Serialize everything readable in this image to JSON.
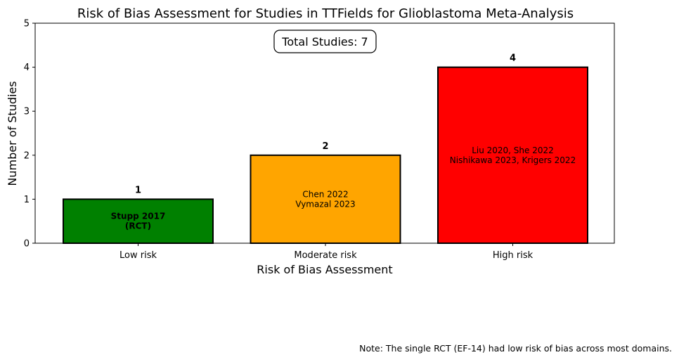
{
  "chart_data": {
    "type": "bar",
    "title": "Risk of Bias Assessment for Studies in TTFields for Glioblastoma Meta-Analysis",
    "xlabel": "Risk of Bias Assessment",
    "ylabel": "Number of Studies",
    "categories": [
      "Low risk",
      "Moderate risk",
      "High risk"
    ],
    "values": [
      1,
      2,
      4
    ],
    "colors": [
      "#008000",
      "#FFA500",
      "#FF0000"
    ],
    "ylim": [
      0,
      5
    ],
    "yticks": [
      "0",
      "1",
      "2",
      "3",
      "4",
      "5"
    ],
    "value_labels": [
      "1",
      "2",
      "4"
    ],
    "bar_annotations": [
      [
        "Stupp 2017",
        "(RCT)"
      ],
      [
        "Chen 2022",
        "Vymazal 2023"
      ],
      [
        "Liu 2020, She 2022",
        "Nishikawa 2023, Krigers 2022"
      ]
    ],
    "annotation_bold": [
      true,
      false,
      false
    ],
    "total_label": "Total Studies: 7",
    "grid": false,
    "legend": "none"
  },
  "note": "Note: The single RCT (EF-14) had low risk of bias across most domains."
}
